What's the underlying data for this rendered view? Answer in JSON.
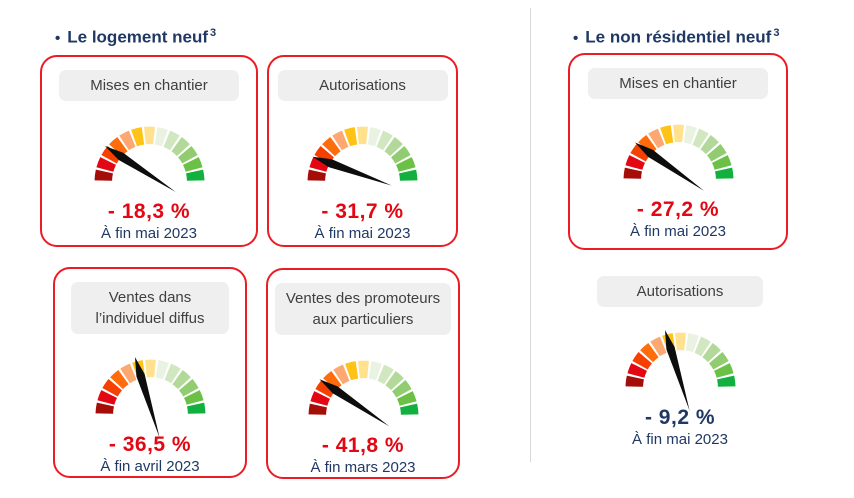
{
  "colors": {
    "navy": "#1f3864",
    "value_red": "#e30613",
    "card_border_red": "#ec1c24",
    "pill_bg": "#efefef",
    "pill_text": "#3f3f3f",
    "divider": "#d9d9d9",
    "needle": "#0d0d0d"
  },
  "gauge_style": {
    "segment_count": 13,
    "segment_colors": [
      "#a50d09",
      "#e30613",
      "#f64000",
      "#ff6c0c",
      "#fca870",
      "#ffc216",
      "#ffe18e",
      "#eaf3e2",
      "#d0e7c0",
      "#b2d999",
      "#92cc70",
      "#6ac145",
      "#12b13f"
    ],
    "needle_color": "#0d0d0d"
  },
  "sections": [
    {
      "bullet": "•",
      "title": "Le logement neuf",
      "superscript": "3",
      "cards": [
        {
          "label": "Mises en chantier",
          "value": "- 18,3 %",
          "date": "À fin mai 2023",
          "needle_angle_deg": 147,
          "bordered": true,
          "value_color": "#e30613"
        },
        {
          "label": "Autorisations",
          "value": "- 31,7 %",
          "date": "À fin mai 2023",
          "needle_angle_deg": 160,
          "bordered": true,
          "value_color": "#e30613"
        },
        {
          "label": "Ventes dans l’individuel diffus",
          "value": "- 36,5 %",
          "date": "À fin avril 2023",
          "needle_angle_deg": 107,
          "bordered": true,
          "value_color": "#e30613"
        },
        {
          "label": "Ventes des promoteurs aux particuliers",
          "value": "- 41,8 %",
          "date": "À fin mars 2023",
          "needle_angle_deg": 146,
          "bordered": true,
          "value_color": "#e30613"
        }
      ]
    },
    {
      "bullet": "•",
      "title": "Le non résidentiel neuf",
      "superscript": "3",
      "cards": [
        {
          "label": "Mises en chantier",
          "value": "- 27,2 %",
          "date": "À fin mai 2023",
          "needle_angle_deg": 145,
          "bordered": true,
          "value_color": "#e30613"
        },
        {
          "label": "Autorisations",
          "value": "- 9,2 %",
          "date": "À fin mai 2023",
          "needle_angle_deg": 107,
          "bordered": false,
          "value_color": "#1f3864"
        }
      ]
    }
  ],
  "chart_data": [
    {
      "type": "gauge",
      "group": "Le logement neuf",
      "title": "Mises en chantier",
      "value_percent": -18.3,
      "as_of": "À fin mai 2023",
      "scale": "semicircular 13-segment red-to-green",
      "needle_zone": "red"
    },
    {
      "type": "gauge",
      "group": "Le logement neuf",
      "title": "Autorisations",
      "value_percent": -31.7,
      "as_of": "À fin mai 2023",
      "scale": "semicircular 13-segment red-to-green",
      "needle_zone": "deep red"
    },
    {
      "type": "gauge",
      "group": "Le logement neuf",
      "title": "Ventes dans l’individuel diffus",
      "value_percent": -36.5,
      "as_of": "À fin avril 2023",
      "scale": "semicircular 13-segment red-to-green",
      "needle_zone": "orange"
    },
    {
      "type": "gauge",
      "group": "Le logement neuf",
      "title": "Ventes des promoteurs aux particuliers",
      "value_percent": -41.8,
      "as_of": "À fin mars 2023",
      "scale": "semicircular 13-segment red-to-green",
      "needle_zone": "red"
    },
    {
      "type": "gauge",
      "group": "Le non résidentiel neuf",
      "title": "Mises en chantier",
      "value_percent": -27.2,
      "as_of": "À fin mai 2023",
      "scale": "semicircular 13-segment red-to-green",
      "needle_zone": "red"
    },
    {
      "type": "gauge",
      "group": "Le non résidentiel neuf",
      "title": "Autorisations",
      "value_percent": -9.2,
      "as_of": "À fin mai 2023",
      "scale": "semicircular 13-segment red-to-green",
      "needle_zone": "orange"
    }
  ]
}
